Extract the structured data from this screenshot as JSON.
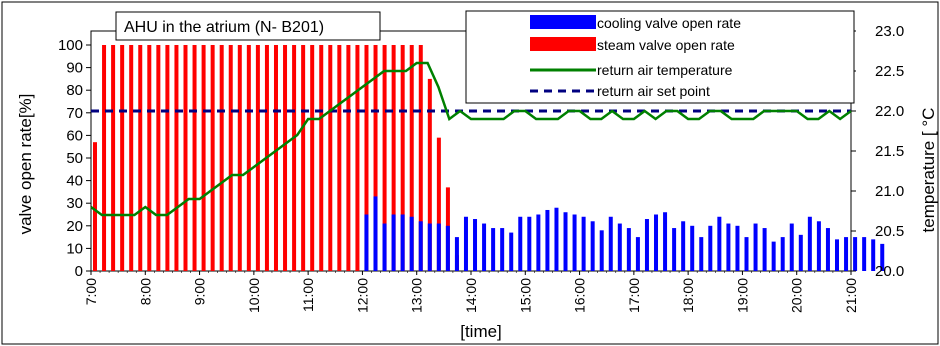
{
  "chart_data": {
    "type": "bar+line",
    "title": "AHU in the atrium (N- B201)",
    "xlabel": "[time]",
    "ylabel_left": "valve open rate[%]",
    "ylabel_right": "temperature [ °C",
    "x_ticks": [
      "7:00",
      "8:00",
      "9:00",
      "10:00",
      "11:00",
      "12:00",
      "13:00",
      "14:00",
      "15:00",
      "16:00",
      "17:00",
      "18:00",
      "19:00",
      "20:00",
      "21:00"
    ],
    "x_range_hours": [
      7,
      21
    ],
    "y_left": {
      "range": [
        0,
        100
      ],
      "ticks": [
        0,
        10,
        20,
        30,
        40,
        50,
        60,
        70,
        80,
        90,
        100
      ]
    },
    "y_right": {
      "range": [
        20.0,
        23.0
      ],
      "ticks": [
        "20.0",
        "20.5",
        "21.0",
        "21.5",
        "22.0",
        "22.5",
        "23.0"
      ]
    },
    "grid": false,
    "legend_position": "top-right",
    "colors": {
      "cooling": "#0000ff",
      "steam": "#ff0000",
      "return_temp": "#008000",
      "set_point": "#000080"
    },
    "series": [
      {
        "name": "cooling valve open rate",
        "kind": "bar",
        "start_hour": 12.0,
        "step_hours": 0.1667,
        "values": [
          25,
          33,
          21,
          25,
          25,
          24,
          22,
          21,
          21,
          20,
          15,
          24,
          23,
          21,
          19,
          19,
          17,
          24,
          24,
          25,
          27,
          28,
          26,
          25,
          24,
          22,
          18,
          24,
          21,
          19,
          15,
          23,
          25,
          26,
          19,
          22,
          20,
          15,
          20,
          24,
          21,
          20,
          15,
          21,
          19,
          13,
          15,
          21,
          16,
          24,
          22,
          19,
          14,
          15,
          15,
          15,
          14,
          12
        ]
      },
      {
        "name": "steam valve open rate",
        "kind": "bar",
        "start_hour": 7.0,
        "step_hours": 0.1667,
        "values": [
          57,
          100,
          100,
          100,
          100,
          100,
          100,
          100,
          100,
          100,
          100,
          100,
          100,
          100,
          100,
          100,
          100,
          100,
          100,
          100,
          100,
          100,
          100,
          100,
          100,
          100,
          100,
          100,
          100,
          100,
          100,
          100,
          100,
          100,
          100,
          100,
          100,
          85,
          59,
          37,
          7
        ]
      },
      {
        "name": "return air temperature",
        "kind": "line",
        "axis": "right",
        "points": [
          [
            7.0,
            20.8
          ],
          [
            7.2,
            20.7
          ],
          [
            7.5,
            20.7
          ],
          [
            7.8,
            20.7
          ],
          [
            8.0,
            20.8
          ],
          [
            8.2,
            20.7
          ],
          [
            8.4,
            20.7
          ],
          [
            8.6,
            20.8
          ],
          [
            8.8,
            20.9
          ],
          [
            9.0,
            20.9
          ],
          [
            9.2,
            21.0
          ],
          [
            9.4,
            21.1
          ],
          [
            9.6,
            21.2
          ],
          [
            9.8,
            21.2
          ],
          [
            10.0,
            21.3
          ],
          [
            10.2,
            21.4
          ],
          [
            10.4,
            21.5
          ],
          [
            10.6,
            21.6
          ],
          [
            10.8,
            21.7
          ],
          [
            11.0,
            21.9
          ],
          [
            11.2,
            21.9
          ],
          [
            11.4,
            22.0
          ],
          [
            11.6,
            22.1
          ],
          [
            11.8,
            22.2
          ],
          [
            12.0,
            22.3
          ],
          [
            12.2,
            22.4
          ],
          [
            12.4,
            22.5
          ],
          [
            12.6,
            22.5
          ],
          [
            12.8,
            22.5
          ],
          [
            13.0,
            22.6
          ],
          [
            13.2,
            22.6
          ],
          [
            13.4,
            22.3
          ],
          [
            13.6,
            21.9
          ],
          [
            13.8,
            22.0
          ],
          [
            14.0,
            21.9
          ],
          [
            14.2,
            21.9
          ],
          [
            14.4,
            21.9
          ],
          [
            14.6,
            21.9
          ],
          [
            14.8,
            22.0
          ],
          [
            15.0,
            22.0
          ],
          [
            15.2,
            21.9
          ],
          [
            15.4,
            21.9
          ],
          [
            15.6,
            21.9
          ],
          [
            15.8,
            22.0
          ],
          [
            16.0,
            22.0
          ],
          [
            16.2,
            21.9
          ],
          [
            16.4,
            21.9
          ],
          [
            16.6,
            22.0
          ],
          [
            16.8,
            21.9
          ],
          [
            17.0,
            21.9
          ],
          [
            17.2,
            22.0
          ],
          [
            17.4,
            21.9
          ],
          [
            17.6,
            22.0
          ],
          [
            17.8,
            22.0
          ],
          [
            18.0,
            21.9
          ],
          [
            18.2,
            21.9
          ],
          [
            18.4,
            22.0
          ],
          [
            18.6,
            22.0
          ],
          [
            18.8,
            21.9
          ],
          [
            19.0,
            21.9
          ],
          [
            19.2,
            21.9
          ],
          [
            19.4,
            22.0
          ],
          [
            19.6,
            22.0
          ],
          [
            19.8,
            22.0
          ],
          [
            20.0,
            22.0
          ],
          [
            20.2,
            21.9
          ],
          [
            20.4,
            21.9
          ],
          [
            20.6,
            22.0
          ],
          [
            20.8,
            21.9
          ],
          [
            21.0,
            22.0
          ]
        ]
      },
      {
        "name": "return air set point",
        "kind": "line",
        "axis": "right",
        "value": 22.0
      }
    ]
  }
}
